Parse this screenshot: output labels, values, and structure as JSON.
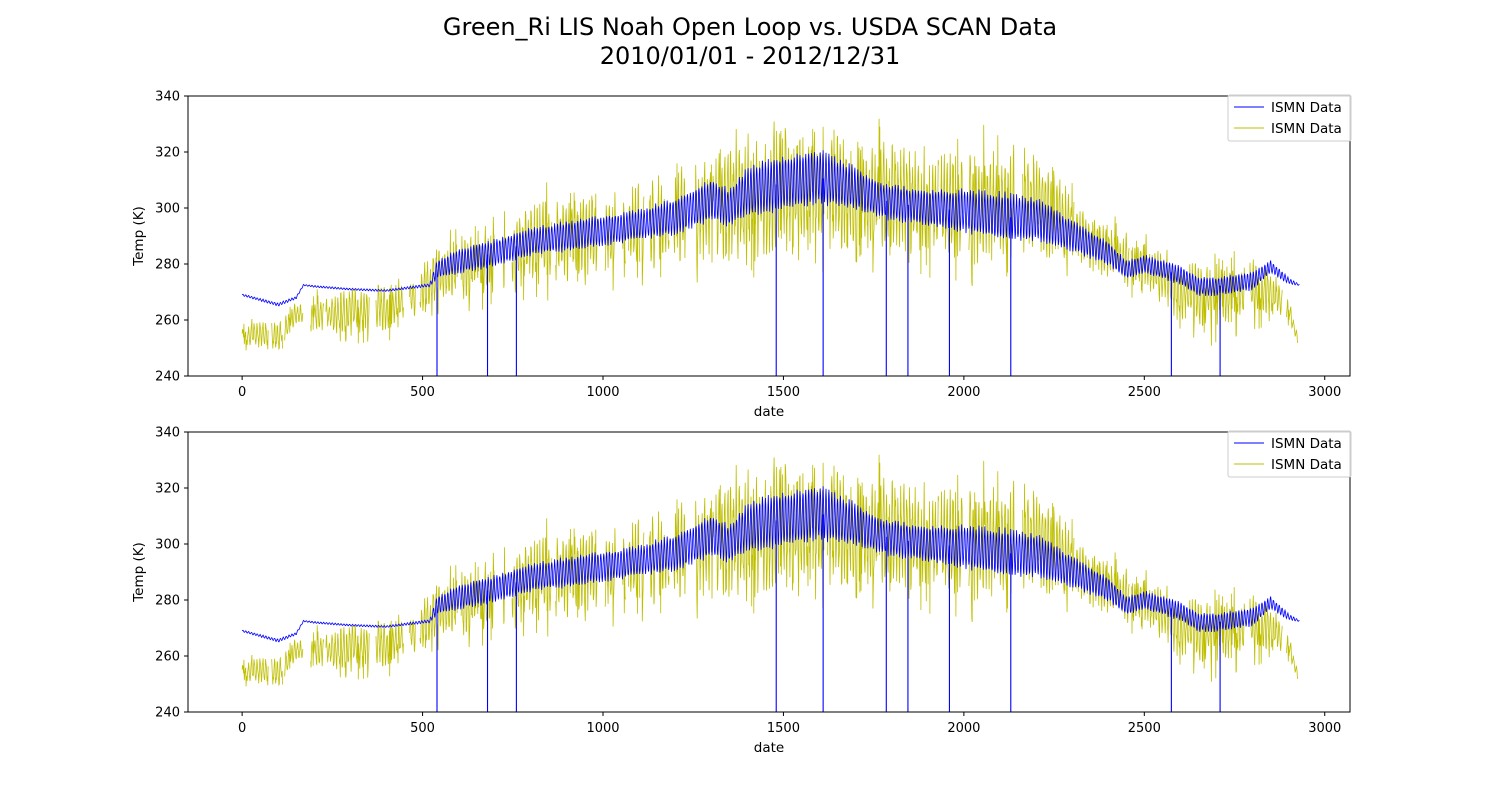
{
  "figure": {
    "title_line1": "Green_Ri LIS Noah Open Loop vs. USDA SCAN Data",
    "title_line2": "2010/01/01 - 2012/12/31"
  },
  "colors": {
    "series_blue": "#0000ff",
    "series_yellow": "#bfbf00",
    "axes": "#000000"
  },
  "chart_data": [
    {
      "type": "line",
      "xlabel": "date",
      "ylabel": "Temp (K)",
      "xlim": [
        -150,
        3070
      ],
      "ylim": [
        240,
        340
      ],
      "x_ticks": [
        0,
        500,
        1000,
        1500,
        2000,
        2500,
        3000
      ],
      "y_ticks": [
        240,
        260,
        280,
        300,
        320,
        340
      ],
      "legend_position": "upper right",
      "series": [
        {
          "name": "ISMN Data",
          "color": "#0000ff",
          "x_range": [
            0,
            2930
          ],
          "envelope_x": [
            0,
            100,
            150,
            170,
            200,
            300,
            400,
            520,
            540,
            600,
            700,
            800,
            900,
            1000,
            1100,
            1200,
            1300,
            1350,
            1400,
            1500,
            1600,
            1700,
            1750,
            1800,
            1900,
            2000,
            2100,
            2200,
            2300,
            2400,
            2450,
            2500,
            2600,
            2650,
            2700,
            2800,
            2850,
            2900,
            2930
          ],
          "envelope_center": [
            269,
            265.5,
            268,
            272.5,
            272,
            271,
            270.5,
            272.5,
            278,
            281,
            284,
            288,
            290,
            292,
            294,
            297,
            303,
            300,
            306,
            309,
            311,
            307,
            304,
            302,
            300,
            299,
            297,
            296,
            290,
            284,
            278,
            280,
            276,
            272,
            272,
            274,
            279,
            274,
            272.5
          ],
          "envelope_amplitude": [
            0.3,
            0.5,
            0.4,
            0.2,
            0.3,
            0.3,
            0.3,
            0.5,
            3,
            4,
            4.5,
            4.5,
            5,
            5,
            5,
            6,
            7,
            6,
            8,
            9,
            9,
            7,
            6,
            6,
            6,
            7,
            8,
            7,
            5,
            4,
            3,
            3,
            3,
            3,
            3,
            3,
            2,
            1,
            0.2
          ],
          "drop_x": [
            540,
            680,
            760,
            1480,
            1610,
            1785,
            1845,
            1960,
            2130,
            2575,
            2710
          ]
        },
        {
          "name": "ISMN Data",
          "color": "#bfbf00",
          "x_range": [
            0,
            2925
          ],
          "envelope_x": [
            0,
            50,
            100,
            150,
            200,
            250,
            300,
            350,
            400,
            450,
            500,
            550,
            600,
            700,
            800,
            900,
            1000,
            1100,
            1200,
            1300,
            1400,
            1500,
            1600,
            1700,
            1800,
            1900,
            2000,
            2100,
            2200,
            2300,
            2350,
            2400,
            2450,
            2500,
            2550,
            2600,
            2700,
            2800,
            2850,
            2900,
            2925
          ],
          "envelope_center": [
            254,
            255,
            254,
            262,
            262,
            262,
            263,
            264,
            264,
            267,
            270,
            276,
            278,
            282,
            287,
            290,
            290,
            293,
            296,
            300,
            303,
            305,
            307,
            303,
            303,
            302,
            300,
            302,
            302,
            293,
            287,
            284,
            281,
            279,
            275,
            270,
            268,
            271,
            270,
            264,
            253
          ],
          "envelope_amplitude": [
            3,
            5,
            5,
            4,
            6,
            7,
            8,
            9,
            9,
            8,
            9,
            10,
            11,
            12,
            14,
            15,
            15,
            16,
            17,
            19,
            22,
            22,
            22,
            18,
            20,
            18,
            20,
            20,
            18,
            12,
            9,
            10,
            10,
            9,
            9,
            10,
            12,
            10,
            8,
            4,
            1.5
          ]
        }
      ]
    },
    {
      "type": "line",
      "xlabel": "date",
      "ylabel": "Temp (K)",
      "xlim": [
        -150,
        3070
      ],
      "ylim": [
        240,
        340
      ],
      "x_ticks": [
        0,
        500,
        1000,
        1500,
        2000,
        2500,
        3000
      ],
      "y_ticks": [
        240,
        260,
        280,
        300,
        320,
        340
      ],
      "legend_position": "upper right",
      "series": [
        {
          "name": "ISMN Data",
          "color": "#0000ff",
          "x_range": [
            0,
            2930
          ],
          "envelope_x": [
            0,
            100,
            150,
            170,
            200,
            300,
            400,
            520,
            540,
            600,
            700,
            800,
            900,
            1000,
            1100,
            1200,
            1300,
            1350,
            1400,
            1500,
            1600,
            1700,
            1750,
            1800,
            1900,
            2000,
            2100,
            2200,
            2300,
            2400,
            2450,
            2500,
            2600,
            2650,
            2700,
            2800,
            2850,
            2900,
            2930
          ],
          "envelope_center": [
            269,
            265.5,
            268,
            272.5,
            272,
            271,
            270.5,
            272.5,
            278,
            281,
            284,
            288,
            290,
            292,
            294,
            297,
            303,
            300,
            306,
            309,
            311,
            307,
            304,
            302,
            300,
            299,
            297,
            296,
            290,
            284,
            278,
            280,
            276,
            272,
            272,
            274,
            279,
            274,
            272.5
          ],
          "envelope_amplitude": [
            0.3,
            0.5,
            0.4,
            0.2,
            0.3,
            0.3,
            0.3,
            0.5,
            3,
            4,
            4.5,
            4.5,
            5,
            5,
            5,
            6,
            7,
            6,
            8,
            9,
            9,
            7,
            6,
            6,
            6,
            7,
            8,
            7,
            5,
            4,
            3,
            3,
            3,
            3,
            3,
            3,
            2,
            1,
            0.2
          ],
          "drop_x": [
            540,
            680,
            760,
            1480,
            1610,
            1785,
            1845,
            1960,
            2130,
            2575,
            2710
          ]
        },
        {
          "name": "ISMN Data",
          "color": "#bfbf00",
          "x_range": [
            0,
            2925
          ],
          "envelope_x": [
            0,
            50,
            100,
            150,
            200,
            250,
            300,
            350,
            400,
            450,
            500,
            550,
            600,
            700,
            800,
            900,
            1000,
            1100,
            1200,
            1300,
            1400,
            1500,
            1600,
            1700,
            1800,
            1900,
            2000,
            2100,
            2200,
            2300,
            2350,
            2400,
            2450,
            2500,
            2550,
            2600,
            2700,
            2800,
            2850,
            2900,
            2925
          ],
          "envelope_center": [
            254,
            255,
            254,
            262,
            262,
            262,
            263,
            264,
            264,
            267,
            270,
            276,
            278,
            282,
            287,
            290,
            290,
            293,
            296,
            300,
            303,
            305,
            307,
            303,
            303,
            302,
            300,
            302,
            302,
            293,
            287,
            284,
            281,
            279,
            275,
            270,
            268,
            271,
            270,
            264,
            253
          ],
          "envelope_amplitude": [
            3,
            5,
            5,
            4,
            6,
            7,
            8,
            9,
            9,
            8,
            9,
            10,
            11,
            12,
            14,
            15,
            15,
            16,
            17,
            19,
            22,
            22,
            22,
            18,
            20,
            18,
            20,
            20,
            18,
            12,
            9,
            10,
            10,
            9,
            9,
            10,
            12,
            10,
            8,
            4,
            1.5
          ]
        }
      ]
    }
  ]
}
